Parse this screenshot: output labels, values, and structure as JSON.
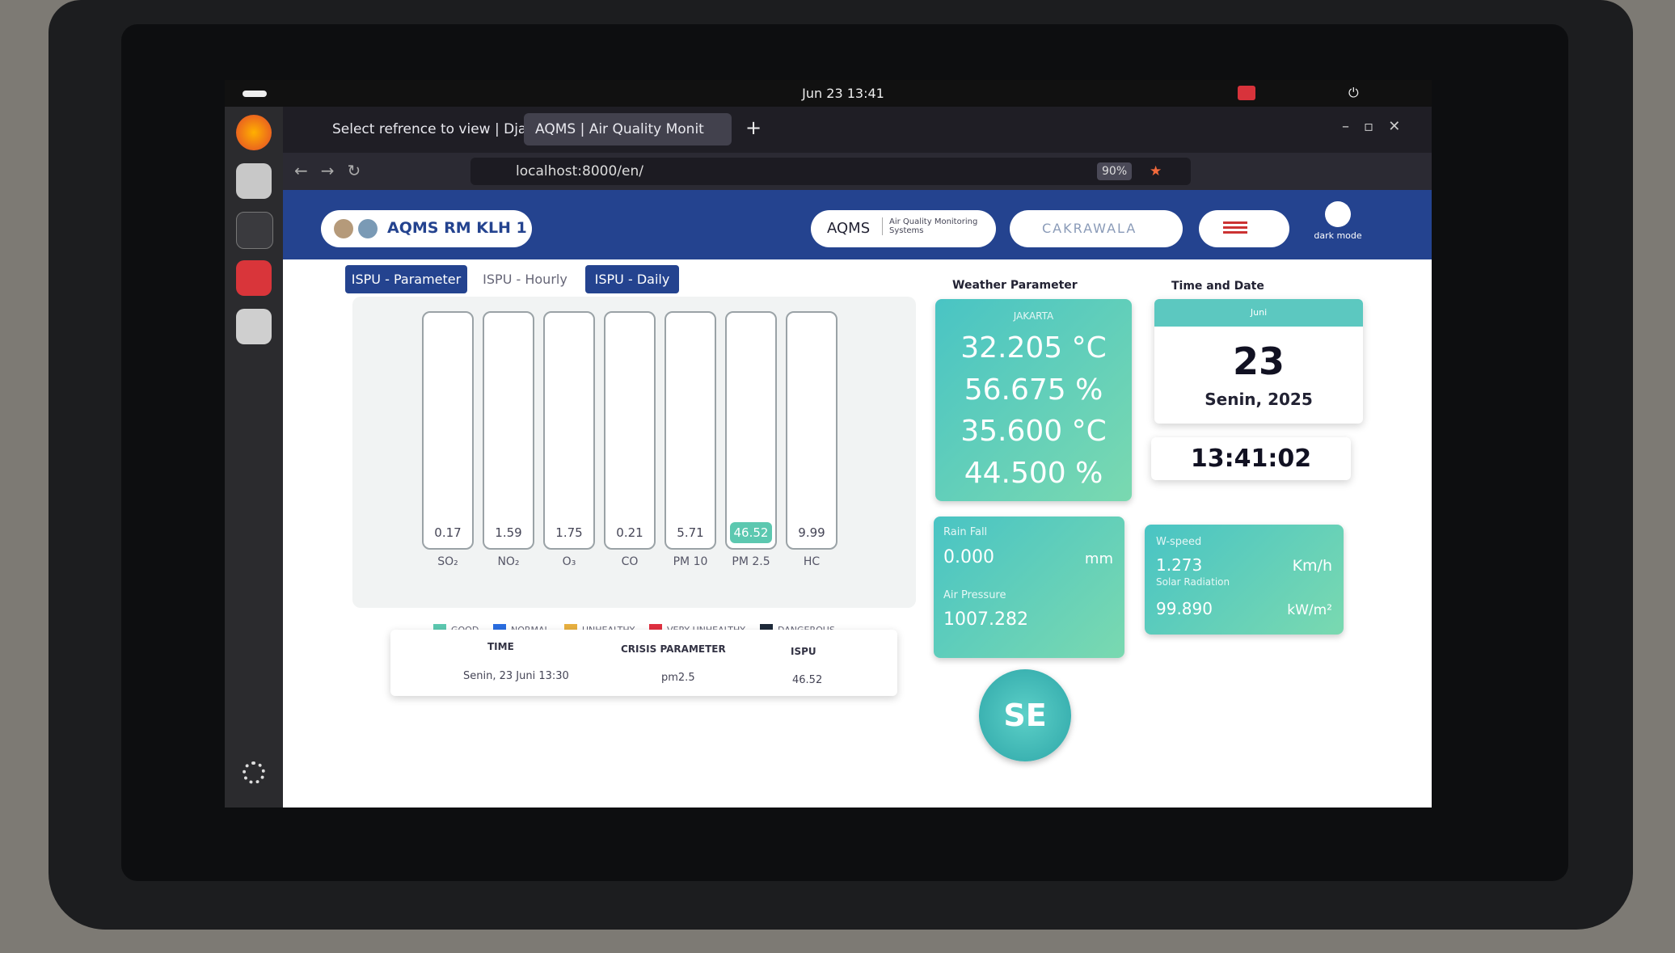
{
  "system_bar": {
    "datetime": "Jun 23 13:41"
  },
  "browser": {
    "tabs": [
      "Select refrence to view | Dja",
      "AQMS | Air Quality Monit"
    ],
    "url": "localhost:8000/en/",
    "zoom": "90%"
  },
  "navbar": {
    "brand": "AQMS RM KLH 1",
    "product": "AQMS",
    "product_subtitle": "Air Quality Monitoring Systems",
    "partner": "CAKRAWALA",
    "dark_mode": "dark mode"
  },
  "tabs": [
    "ISPU - Parameter",
    "ISPU - Hourly",
    "ISPU - Daily"
  ],
  "parameters": [
    {
      "name": "SO₂",
      "value": 0.17
    },
    {
      "name": "NO₂",
      "value": 1.59
    },
    {
      "name": "O₃",
      "value": 1.75
    },
    {
      "name": "CO",
      "value": 0.21
    },
    {
      "name": "PM 10",
      "value": 5.71
    },
    {
      "name": "PM 2.5",
      "value": 46.52
    },
    {
      "name": "HC",
      "value": 9.99
    }
  ],
  "legend": [
    "GOOD",
    "NORMAL",
    "UNHEALTHY",
    "VERY UNHEALTHY",
    "DANGEROUS"
  ],
  "crisis_table": {
    "headers": [
      "TIME",
      "CRISIS PARAMETER",
      "ISPU"
    ],
    "row": [
      "Senin, 23 Juni 13:30",
      "pm2.5",
      46.52
    ]
  },
  "weather": {
    "title": "Weather Parameter",
    "location": "JAKARTA",
    "readings": [
      "32.205 °C",
      "56.675 %",
      "35.600 °C",
      "44.500 %"
    ],
    "rainfall": {
      "label": "Rain Fall",
      "value": "0.000",
      "unit": "mm"
    },
    "air_pressure": {
      "label": "Air Pressure",
      "value": "1007.282"
    },
    "wind_speed": {
      "label": "W-speed",
      "value": "1.273",
      "unit": "Km/h"
    },
    "solar_radiation": {
      "label": "Solar Radiation",
      "value": "99.890",
      "unit": "kW/m²"
    },
    "wind_direction": "SE"
  },
  "time_date": {
    "title": "Time and Date",
    "month": "Juni",
    "day": 23,
    "weekday_year": "Senin, 2025",
    "clock": "13:41:02"
  }
}
